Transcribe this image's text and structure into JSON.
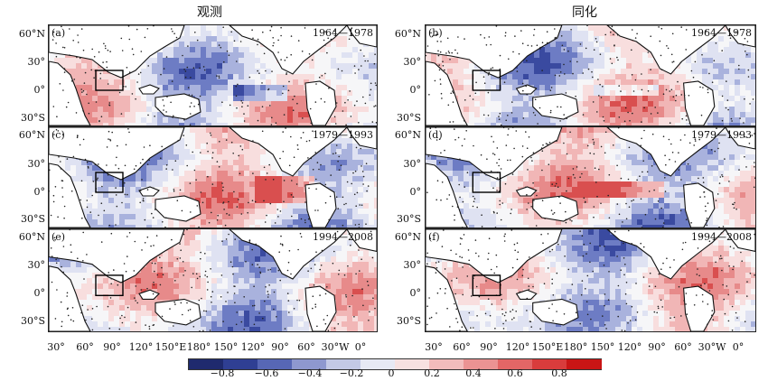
{
  "columns": {
    "left_title": "观测",
    "right_title": "同化"
  },
  "panels": [
    {
      "label": "(a)",
      "period": "1964—1978"
    },
    {
      "label": "(b)",
      "period": "1964—1978"
    },
    {
      "label": "(c)",
      "period": "1979—1993"
    },
    {
      "label": "(d)",
      "period": "1979—1993"
    },
    {
      "label": "(e)",
      "period": "1994—2008"
    },
    {
      "label": "(f)",
      "period": "1994—2008"
    }
  ],
  "y_labels": [
    "60°N",
    "30°",
    "0°",
    "30°S"
  ],
  "x_labels": [
    "30°",
    "60°",
    "90°",
    "120°",
    "150°E",
    "180°",
    "150°",
    "120°",
    "90°",
    "60°",
    "30°W",
    "0°"
  ],
  "colorbar": {
    "ticks": [
      "−0.8",
      "−0.6",
      "−0.4",
      "−0.2",
      "0",
      "0.2",
      "0.4",
      "0.6",
      "0.8"
    ],
    "colors": [
      "#1f2a6e",
      "#2f3f93",
      "#5767b5",
      "#8e98cf",
      "#c3c9e6",
      "#e7e9f4",
      "#f7e1e1",
      "#f2bcbc",
      "#eb9393",
      "#e36666",
      "#d93c3c",
      "#c91515"
    ]
  }
}
